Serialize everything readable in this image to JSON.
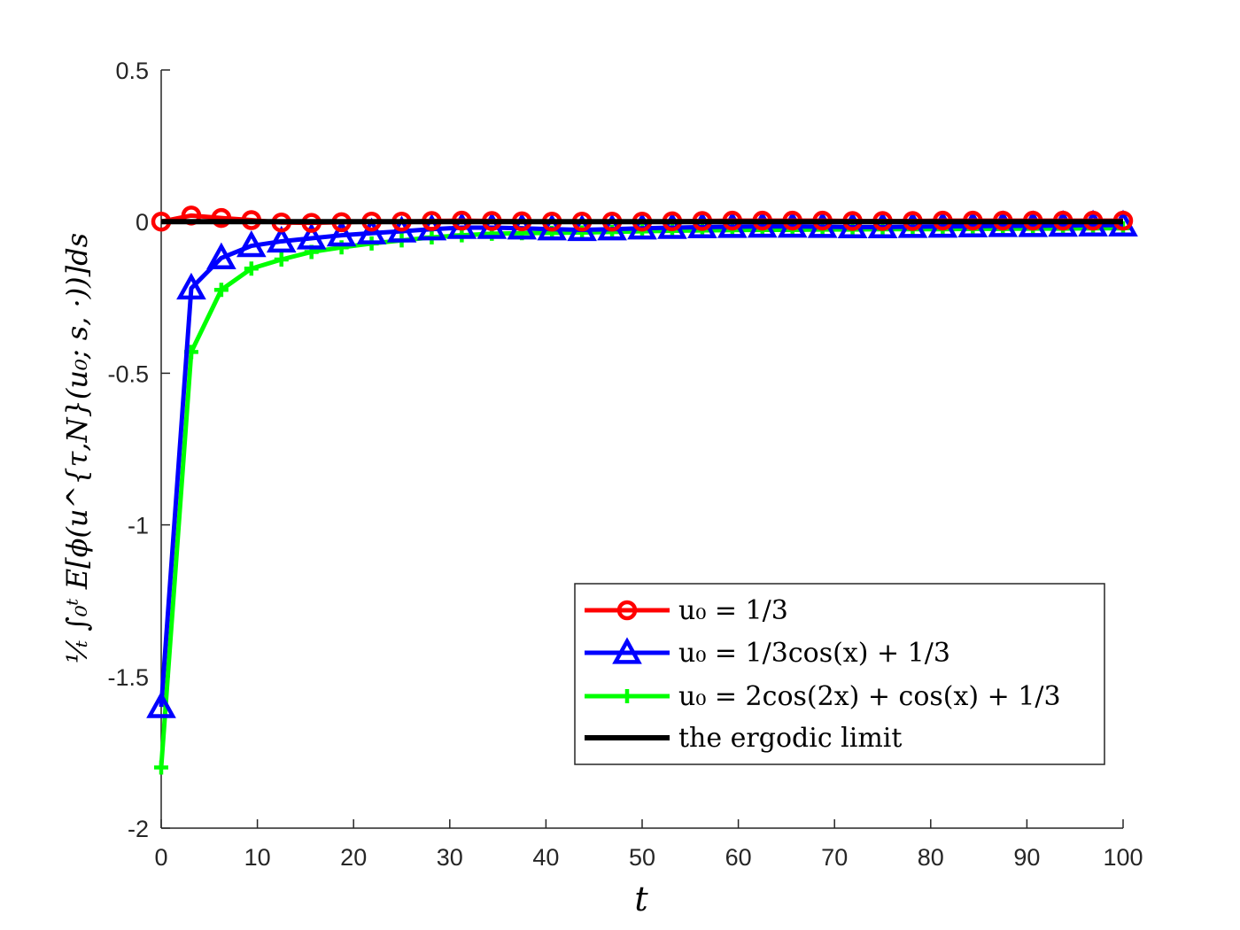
{
  "chart_data": {
    "type": "line",
    "title": "",
    "xlabel": "t",
    "ylabel": "¹⁄ₜ ∫₀ᵗ E[ϕ(u^{τ,N}(u₀; s, ·))]ds",
    "xlim": [
      0,
      100
    ],
    "ylim": [
      -2,
      0.5
    ],
    "xticks": [
      0,
      10,
      20,
      30,
      40,
      50,
      60,
      70,
      80,
      90,
      100
    ],
    "xtick_labels": [
      "0",
      "10",
      "20",
      "30",
      "40",
      "50",
      "60",
      "70",
      "80",
      "90",
      "100"
    ],
    "yticks": [
      -2,
      -1.5,
      -1,
      -0.5,
      0,
      0.5
    ],
    "ytick_labels": [
      "-2",
      "-1.5",
      "-1",
      "-0.5",
      "0",
      "0.5"
    ],
    "grid": false,
    "legend_position": "bottom-right",
    "x": [
      0,
      3.125,
      6.25,
      9.375,
      12.5,
      15.625,
      18.75,
      21.875,
      25,
      28.125,
      31.25,
      34.375,
      37.5,
      40.625,
      43.75,
      46.875,
      50,
      53.125,
      56.25,
      59.375,
      62.5,
      65.625,
      68.75,
      71.875,
      75,
      78.125,
      81.25,
      84.375,
      87.5,
      90.625,
      93.75,
      96.875,
      100
    ],
    "series": [
      {
        "name": "u₀ = 1/3",
        "color": "#ff0000",
        "marker": "circle",
        "values": [
          0,
          0.02,
          0.012,
          0.005,
          -0.003,
          -0.004,
          -0.002,
          0,
          0,
          0.002,
          0.003,
          0.002,
          0.001,
          0,
          0,
          0,
          0,
          0.001,
          0.002,
          0.003,
          0.003,
          0.003,
          0.003,
          0.002,
          0.002,
          0.002,
          0.003,
          0.003,
          0.003,
          0.003,
          0.003,
          0.003,
          0.003
        ]
      },
      {
        "name": "u₀ = 1/3cos(x) + 1/3",
        "color": "#0000ff",
        "marker": "triangle",
        "values": [
          -1.6,
          -0.22,
          -0.12,
          -0.08,
          -0.065,
          -0.055,
          -0.045,
          -0.038,
          -0.032,
          -0.025,
          -0.02,
          -0.02,
          -0.022,
          -0.025,
          -0.027,
          -0.025,
          -0.022,
          -0.02,
          -0.018,
          -0.017,
          -0.016,
          -0.016,
          -0.017,
          -0.018,
          -0.018,
          -0.017,
          -0.016,
          -0.015,
          -0.014,
          -0.014,
          -0.013,
          -0.012,
          -0.012
        ]
      },
      {
        "name": "u₀ = 2cos(2x) + cos(x) + 1/3",
        "color": "#00ff00",
        "marker": "plus",
        "values": [
          -1.8,
          -0.43,
          -0.225,
          -0.155,
          -0.125,
          -0.1,
          -0.085,
          -0.072,
          -0.062,
          -0.052,
          -0.045,
          -0.04,
          -0.038,
          -0.037,
          -0.036,
          -0.034,
          -0.032,
          -0.03,
          -0.029,
          -0.028,
          -0.027,
          -0.027,
          -0.026,
          -0.026,
          -0.025,
          -0.025,
          -0.025,
          -0.024,
          -0.024,
          -0.023,
          -0.023,
          -0.022,
          -0.022
        ]
      },
      {
        "name": "the ergodic limit",
        "color": "#000000",
        "marker": "none",
        "values": [
          0,
          0,
          0,
          0,
          0,
          0,
          0,
          0,
          0,
          0,
          0,
          0,
          0,
          0,
          0,
          0,
          0,
          0,
          0,
          0,
          0,
          0,
          0,
          0,
          0,
          0,
          0,
          0,
          0,
          0,
          0,
          0,
          0
        ]
      }
    ]
  }
}
